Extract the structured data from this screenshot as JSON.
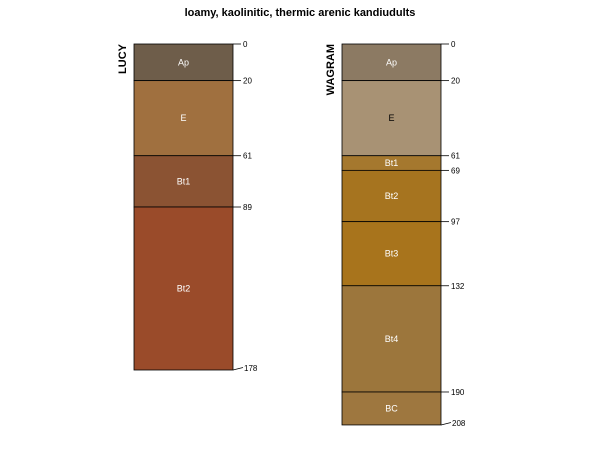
{
  "chart_data": {
    "type": "soil-profile",
    "title": "loamy, kaolinitic, thermic arenic kandiudults",
    "depth_range": [
      0,
      208
    ],
    "profiles": [
      {
        "name": "LUCY",
        "horizons": [
          {
            "name": "Ap",
            "top": 0,
            "bottom": 20,
            "color": "#6e5d4a",
            "label_color": "#ffffff"
          },
          {
            "name": "E",
            "top": 20,
            "bottom": 61,
            "color": "#a0703f",
            "label_color": "#ffffff"
          },
          {
            "name": "Bt1",
            "top": 61,
            "bottom": 89,
            "color": "#8b5333",
            "label_color": "#ffffff"
          },
          {
            "name": "Bt2",
            "top": 89,
            "bottom": 178,
            "color": "#9a4b2a",
            "label_color": "#ffffff"
          }
        ],
        "depth_labels": [
          "0",
          "20",
          "61",
          "89",
          "178"
        ]
      },
      {
        "name": "WAGRAM",
        "horizons": [
          {
            "name": "Ap",
            "top": 0,
            "bottom": 20,
            "color": "#8c7a63",
            "label_color": "#ffffff"
          },
          {
            "name": "E",
            "top": 20,
            "bottom": 61,
            "color": "#a89274",
            "label_color": "#000000"
          },
          {
            "name": "Bt1",
            "top": 61,
            "bottom": 69,
            "color": "#a5782e",
            "label_color": "#ffffff"
          },
          {
            "name": "Bt2",
            "top": 69,
            "bottom": 97,
            "color": "#a6741f",
            "label_color": "#ffffff"
          },
          {
            "name": "Bt3",
            "top": 97,
            "bottom": 132,
            "color": "#a8741c",
            "label_color": "#ffffff"
          },
          {
            "name": "Bt4",
            "top": 132,
            "bottom": 190,
            "color": "#9c763c",
            "label_color": "#ffffff"
          },
          {
            "name": "BC",
            "top": 190,
            "bottom": 208,
            "color": "#9e773f",
            "label_color": "#ffffff"
          }
        ],
        "depth_labels": [
          "0",
          "20",
          "61",
          "69",
          "97",
          "132",
          "190",
          "208"
        ]
      }
    ]
  }
}
